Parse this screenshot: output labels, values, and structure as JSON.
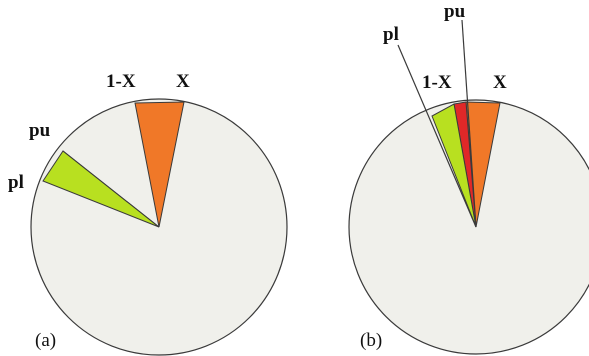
{
  "colors": {
    "background": "#f0f0eb",
    "outline": "#3a3a3a",
    "orange": "#f07828",
    "green": "#b8e020",
    "red": "#e02828"
  },
  "panel_a": {
    "label": "(a)",
    "text_x": "X",
    "text_1mx": "1-X",
    "text_pu": "pu",
    "text_pl": "pl"
  },
  "panel_b": {
    "label": "(b)",
    "text_x": "X",
    "text_1mx": "1-X",
    "text_pu": "pu",
    "text_pl": "pl"
  }
}
